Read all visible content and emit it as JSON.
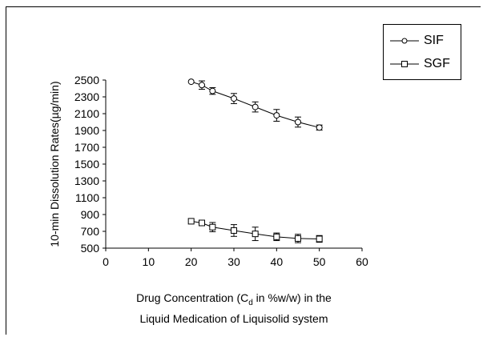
{
  "chart_data": {
    "type": "line",
    "title": "",
    "xlabel_line1_before": "Drug Concentration (C",
    "xlabel_line1_sub": "d",
    "xlabel_line1_after": " in %w/w) in the",
    "xlabel_line2": "Liquid Medication of Liquisolid system",
    "ylabel": "10-min Dissolution Rates(µg/min)",
    "xlim": [
      0,
      60
    ],
    "ylim": [
      500,
      2500
    ],
    "xticks": [
      0,
      10,
      20,
      30,
      40,
      50,
      60
    ],
    "yticks": [
      500,
      700,
      900,
      1100,
      1300,
      1500,
      1700,
      1900,
      2100,
      2300,
      2500
    ],
    "grid": false,
    "legend_position": "top-right",
    "series": [
      {
        "name": "SIF",
        "marker": "circle",
        "x": [
          20,
          22.5,
          25,
          30,
          35,
          40,
          45,
          50
        ],
        "y": [
          2480,
          2440,
          2370,
          2280,
          2180,
          2080,
          2000,
          1935
        ],
        "err": [
          0,
          50,
          40,
          60,
          60,
          70,
          60,
          30
        ]
      },
      {
        "name": "SGF",
        "marker": "square",
        "x": [
          20,
          22.5,
          25,
          30,
          35,
          40,
          45,
          50
        ],
        "y": [
          820,
          800,
          750,
          710,
          670,
          635,
          615,
          610
        ],
        "err": [
          0,
          30,
          55,
          70,
          80,
          45,
          50,
          40
        ]
      }
    ]
  }
}
